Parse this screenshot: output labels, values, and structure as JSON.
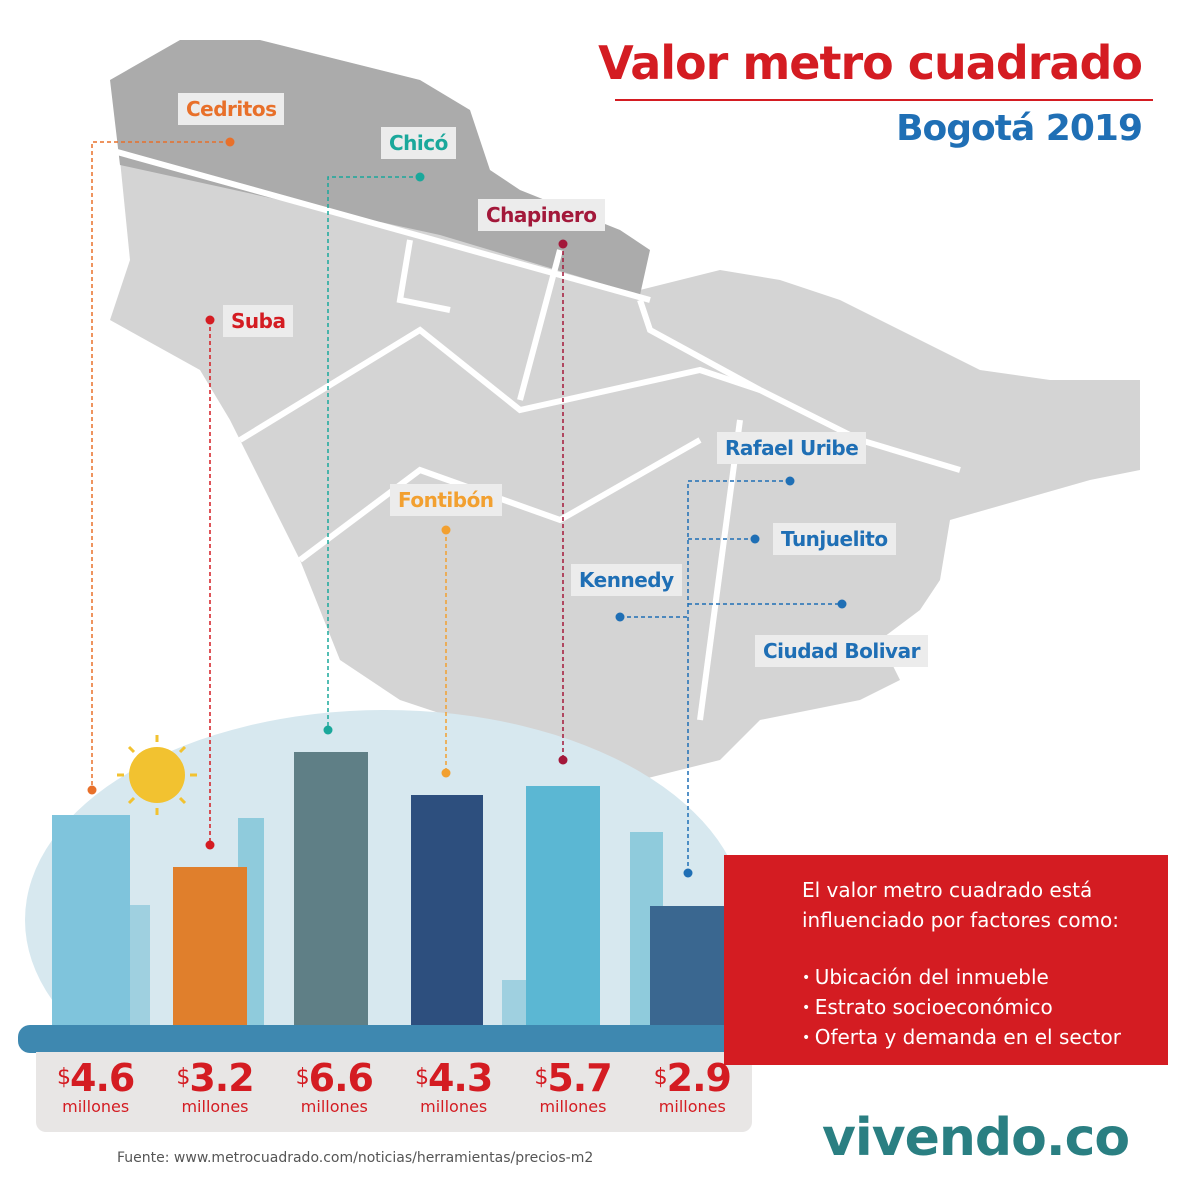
{
  "header": {
    "title": "Valor metro cuadrado",
    "subtitle": "Bogotá 2019"
  },
  "colors": {
    "red": "#d41c22",
    "blue": "#1f6fb5",
    "teal_logo": "#2a7f82",
    "map_gray": "#c9c9c9",
    "map_dark": "#a9a9a9"
  },
  "districts": [
    {
      "name": "Cedritos",
      "color": "#e8702a",
      "price": "4.6"
    },
    {
      "name": "Suba",
      "color": "#d41c22",
      "price": "3.2"
    },
    {
      "name": "Chicó",
      "color": "#1aa89b",
      "price": "6.6"
    },
    {
      "name": "Fontibón",
      "color": "#f2a030",
      "price": "4.3"
    },
    {
      "name": "Chapinero",
      "color": "#a3183a",
      "price": "5.7"
    },
    {
      "name": "Rafael Uribe",
      "color": "#1f6fb5",
      "price": "2.9"
    },
    {
      "name": "Tunjuelito",
      "color": "#1f6fb5",
      "price": "2.9"
    },
    {
      "name": "Kennedy",
      "color": "#1f6fb5",
      "price": "2.9"
    },
    {
      "name": "Ciudad Bolivar",
      "color": "#1f6fb5",
      "price": "2.9"
    }
  ],
  "prices": [
    {
      "currency": "$",
      "value": "4.6",
      "unit": "millones"
    },
    {
      "currency": "$",
      "value": "3.2",
      "unit": "millones"
    },
    {
      "currency": "$",
      "value": "6.6",
      "unit": "millones"
    },
    {
      "currency": "$",
      "value": "4.3",
      "unit": "millones"
    },
    {
      "currency": "$",
      "value": "5.7",
      "unit": "millones"
    },
    {
      "currency": "$",
      "value": "2.9",
      "unit": "millones"
    }
  ],
  "factors": {
    "heading": "El valor metro cuadrado está influenciado por factores como:",
    "items": [
      "Ubicación del inmueble",
      "Estrato socioeconómico",
      "Oferta y demanda en el sector"
    ]
  },
  "source": "Fuente: www.metrocuadrado.com/noticias/herramientas/precios-m2",
  "logo": "vivendo.co"
}
